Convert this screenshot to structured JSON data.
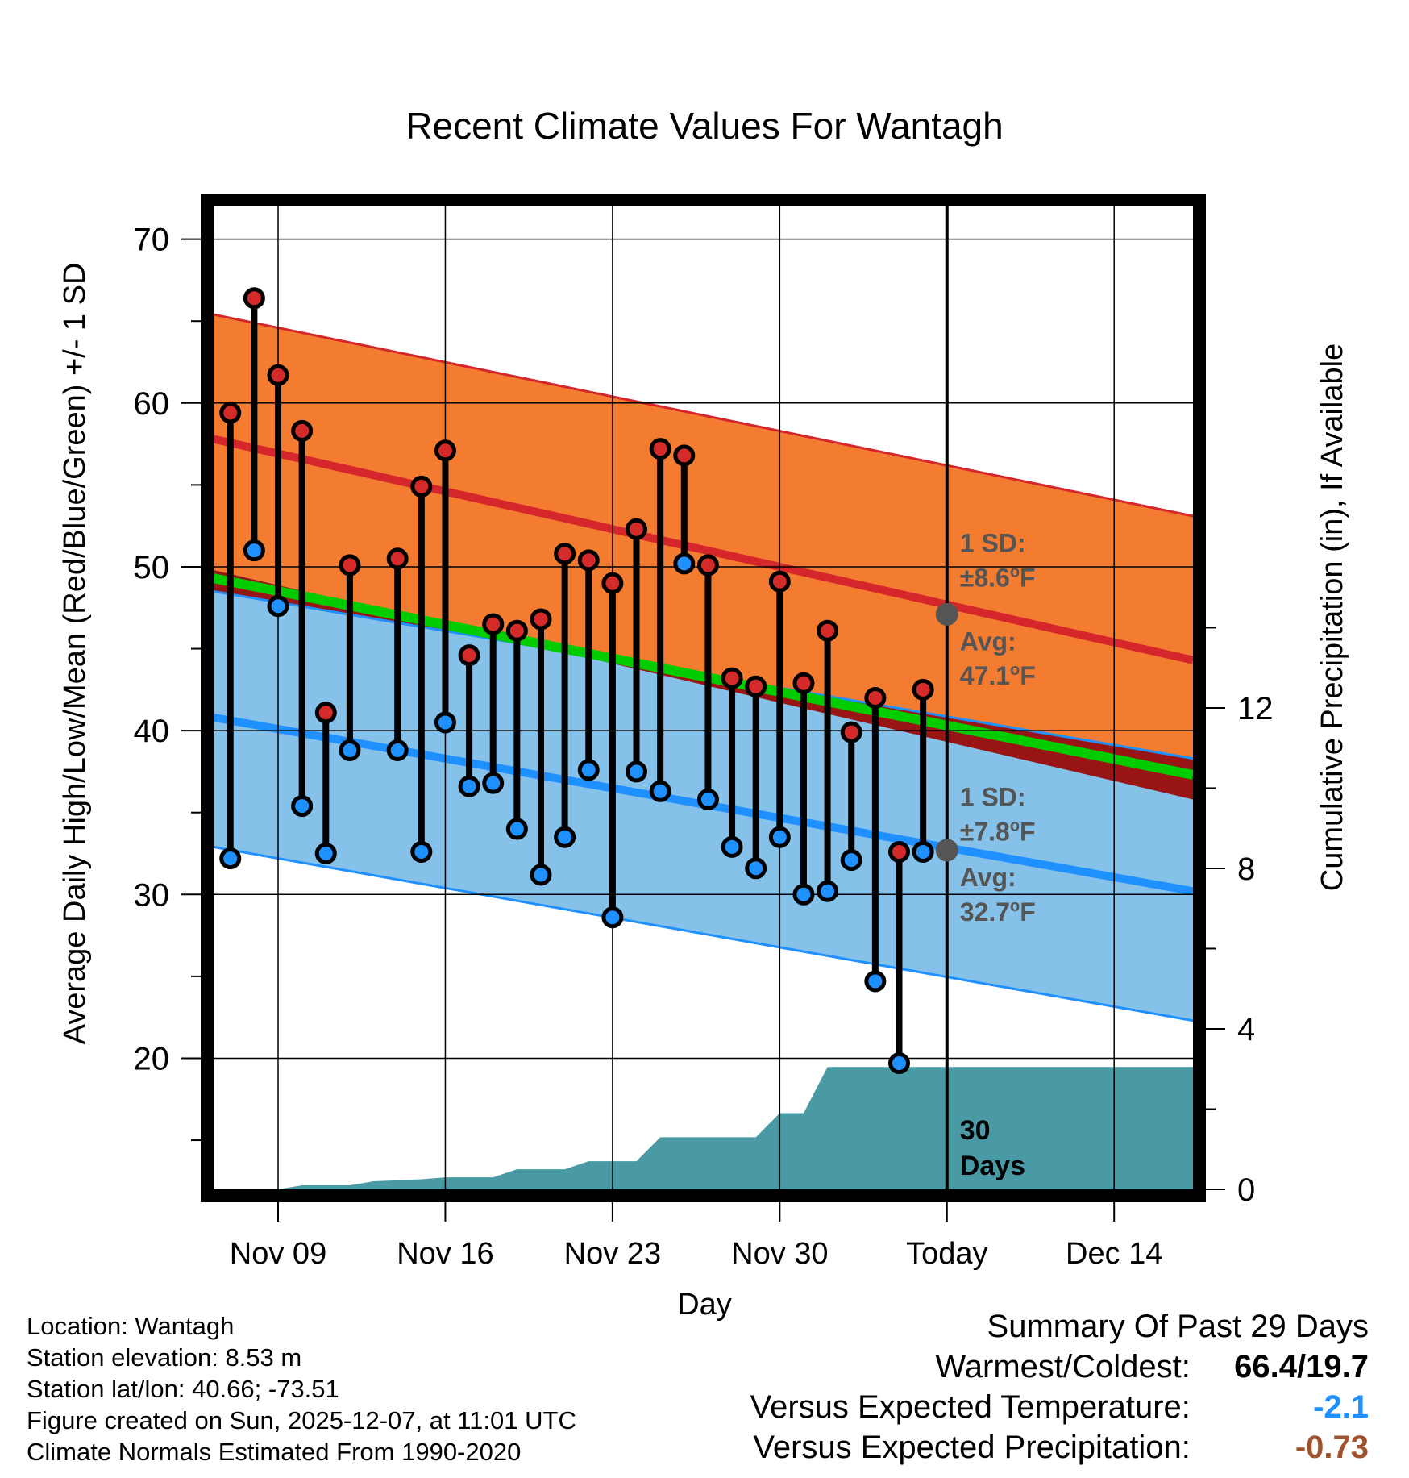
{
  "chart_data": {
    "type": "climate-range",
    "title": "Recent Climate Values For Wantagh",
    "xlabel": "Day",
    "ylabel_left": "Average Daily High/Low/Mean (Red/Blue/Green) +/- 1 SD",
    "ylabel_right": "Cumulative Precipitation (in), If Available",
    "ylim_left": [
      12,
      72
    ],
    "yticks_left": [
      20,
      30,
      40,
      50,
      60,
      70
    ],
    "ylim_right": [
      0,
      24.5
    ],
    "yticks_right": [
      0,
      4,
      8,
      12
    ],
    "xlim": [
      6.3,
      47.3
    ],
    "xticks": [
      {
        "day": 9,
        "label": "Nov 09"
      },
      {
        "day": 16,
        "label": "Nov 16"
      },
      {
        "day": 23,
        "label": "Nov 23"
      },
      {
        "day": 30,
        "label": "Nov 30"
      },
      {
        "day": 37,
        "label": "Today"
      },
      {
        "day": 44,
        "label": "Dec 14"
      }
    ],
    "today": 37,
    "normals": {
      "x": [
        6.3,
        47.3
      ],
      "high_mean": [
        57.8,
        44.3
      ],
      "high_upper": [
        65.4,
        53.1
      ],
      "high_lower": [
        49.8,
        35.8
      ],
      "low_mean": [
        40.8,
        30.2
      ],
      "low_upper": [
        48.5,
        38.3
      ],
      "low_lower": [
        32.9,
        22.3
      ],
      "mean": [
        49.3,
        37.3
      ]
    },
    "days": [
      7,
      8,
      9,
      10,
      11,
      12,
      14,
      15,
      16,
      17,
      18,
      19,
      20,
      21,
      22,
      23,
      24,
      25,
      26,
      27,
      28,
      29,
      30,
      31,
      32,
      33,
      34,
      35,
      36
    ],
    "highs": [
      59.4,
      66.4,
      61.7,
      58.3,
      41.1,
      50.1,
      50.5,
      54.9,
      57.1,
      44.6,
      46.5,
      46.1,
      46.8,
      50.8,
      50.4,
      49.0,
      52.3,
      57.2,
      56.8,
      50.1,
      43.2,
      42.7,
      49.1,
      42.9,
      46.1,
      39.9,
      42.0,
      32.6,
      42.5
    ],
    "lows": [
      32.2,
      51.0,
      47.6,
      35.4,
      32.5,
      38.8,
      38.8,
      32.6,
      40.5,
      36.6,
      36.8,
      34.0,
      31.2,
      33.5,
      37.6,
      28.6,
      37.5,
      36.3,
      50.2,
      35.8,
      32.9,
      31.6,
      33.5,
      30.0,
      30.2,
      32.1,
      24.7,
      19.7,
      32.6
    ],
    "precip_cumulative": {
      "x": [
        6.3,
        9.0,
        10.0,
        12.0,
        13.0,
        15.0,
        16.0,
        18.0,
        19.0,
        21.0,
        22.0,
        24.0,
        25.0,
        26.0,
        28.0,
        29.0,
        30.0,
        31.0,
        32.0,
        47.3
      ],
      "y": [
        0.0,
        0.0,
        0.1,
        0.1,
        0.2,
        0.25,
        0.3,
        0.3,
        0.5,
        0.5,
        0.7,
        0.7,
        1.3,
        1.3,
        1.3,
        1.3,
        1.9,
        1.9,
        3.05,
        3.05
      ]
    },
    "annotations": {
      "high_sd_label": "1 SD:",
      "high_sd_value": "±8.6",
      "high_avg_label": "Avg:",
      "high_avg_value": "47.1",
      "high_avg": 47.1,
      "low_sd_label": "1 SD:",
      "low_sd_value": "±7.8",
      "low_avg_label": "Avg:",
      "low_avg_value": "32.7",
      "low_avg": 32.7,
      "degree_unit": "o",
      "temp_unit": "F",
      "days_number": "30",
      "days_word": "Days"
    }
  },
  "info": {
    "location": "Location: Wantagh",
    "elevation": "Station elevation: 8.53 m",
    "latlon": "Station lat/lon: 40.66; -73.51",
    "created": "Figure created on Sun, 2025-12-07, at 11:01 UTC",
    "normals": "Climate Normals Estimated From 1990-2020"
  },
  "summary": {
    "title": "Summary Of Past 29 Days",
    "warmest_label": "Warmest/Coldest:",
    "warmest_value": "66.4/19.7",
    "temp_label": "Versus Expected Temperature:",
    "temp_value": "-2.1",
    "precip_label": "Versus Expected Precipitation:",
    "precip_value": "-0.73"
  },
  "colors": {
    "high_band": "#f47c30",
    "high_line": "#d4262b",
    "low_band": "#85c1e9",
    "low_line": "#1e90ff",
    "mean_line": "#00cc00",
    "mean_overlap": "#991414",
    "precip": "#4a9aa5",
    "high_dot": "#d42a2a",
    "low_dot": "#1e90ff",
    "avg_marker": "#555555",
    "annotation_text": "#555555"
  }
}
